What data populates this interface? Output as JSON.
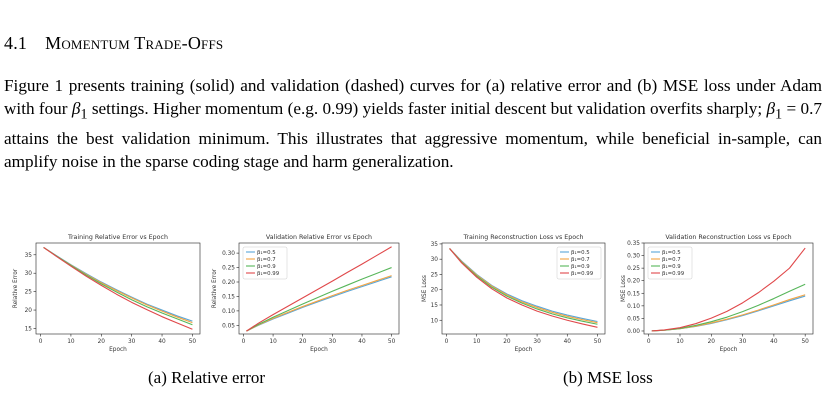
{
  "section": {
    "number": "4.1",
    "title": "Momentum Trade-Offs"
  },
  "paragraph": {
    "p1": "Figure 1 presents training (solid) and validation (dashed) curves for (a) relative error and (b) MSE loss under Adam with four ",
    "beta_sym": "β",
    "beta_sub": "1",
    "p2": " settings. Higher momentum (e.g. 0.99) yields faster initial descent but validation overfits sharply; ",
    "p3_eq": " = 0.7 attains the best validation minimum. This illustrates that aggressive momentum, while beneficial in-sample, can amplify noise in the sparse coding stage and harm generalization."
  },
  "captions": {
    "a": "(a) Relative error",
    "b": "(b) MSE loss"
  },
  "colors": {
    "b05": "#5aa6d8",
    "b07": "#f4a442",
    "b09": "#57b65a",
    "b099": "#e0484a"
  },
  "chart_data": [
    {
      "type": "line",
      "title": "Training Relative Error vs Epoch",
      "xlabel": "Epoch",
      "ylabel": "Relative Error",
      "xlim": [
        -1.5,
        52.5
      ],
      "ylim": [
        13.5,
        38.2
      ],
      "xticks": [
        0,
        10,
        20,
        30,
        40,
        50
      ],
      "yticks": [
        15,
        20,
        25,
        30,
        35
      ],
      "ytick_labels": [
        "15",
        "20",
        "25",
        "30",
        "35"
      ],
      "legend": "top-right",
      "show_legend": false,
      "x": [
        1,
        5,
        10,
        15,
        20,
        25,
        30,
        35,
        40,
        45,
        50
      ],
      "series": [
        {
          "name": "β₁=0.5",
          "color": "b05",
          "values": [
            37.0,
            34.9,
            32.3,
            29.9,
            27.6,
            25.5,
            23.5,
            21.6,
            20.0,
            18.4,
            17.0
          ]
        },
        {
          "name": "β₁=0.7",
          "color": "b07",
          "values": [
            37.0,
            34.8,
            32.2,
            29.7,
            27.4,
            25.3,
            23.3,
            21.4,
            19.7,
            18.1,
            16.6
          ]
        },
        {
          "name": "β₁=0.9",
          "color": "b09",
          "values": [
            37.0,
            34.8,
            32.1,
            29.5,
            27.1,
            24.9,
            22.8,
            20.9,
            19.2,
            17.6,
            16.0
          ]
        },
        {
          "name": "β₁=0.99",
          "color": "b099",
          "values": [
            37.0,
            34.7,
            31.9,
            29.2,
            26.7,
            24.3,
            22.1,
            20.1,
            18.2,
            16.5,
            14.8
          ]
        }
      ]
    },
    {
      "type": "line",
      "title": "Validation Relative Error vs Epoch",
      "xlabel": "Epoch",
      "ylabel": "Relative Error",
      "xlim": [
        -1.5,
        52.5
      ],
      "ylim": [
        0.02,
        0.335
      ],
      "xticks": [
        0,
        10,
        20,
        30,
        40,
        50
      ],
      "yticks": [
        0.05,
        0.1,
        0.15,
        0.2,
        0.25,
        0.3
      ],
      "ytick_labels": [
        "0.05",
        "0.10",
        "0.15",
        "0.20",
        "0.25",
        "0.30"
      ],
      "legend": "top-left",
      "show_legend": true,
      "x": [
        1,
        5,
        10,
        15,
        20,
        25,
        30,
        35,
        40,
        45,
        50
      ],
      "series": [
        {
          "name": "β₁=0.5",
          "color": "b05",
          "values": [
            0.03,
            0.05,
            0.072,
            0.092,
            0.112,
            0.131,
            0.149,
            0.167,
            0.184,
            0.201,
            0.218
          ]
        },
        {
          "name": "β₁=0.7",
          "color": "b07",
          "values": [
            0.03,
            0.051,
            0.074,
            0.095,
            0.115,
            0.134,
            0.153,
            0.171,
            0.188,
            0.205,
            0.222
          ]
        },
        {
          "name": "β₁=0.9",
          "color": "b09",
          "values": [
            0.03,
            0.053,
            0.078,
            0.101,
            0.124,
            0.146,
            0.168,
            0.189,
            0.21,
            0.23,
            0.25
          ]
        },
        {
          "name": "β₁=0.99",
          "color": "b099",
          "values": [
            0.03,
            0.057,
            0.087,
            0.116,
            0.145,
            0.174,
            0.203,
            0.233,
            0.262,
            0.292,
            0.322
          ]
        }
      ]
    },
    {
      "type": "line",
      "title": "Training Reconstruction Loss vs Epoch",
      "xlabel": "Epoch",
      "ylabel": "MSE Loss",
      "xlim": [
        -1.5,
        52.5
      ],
      "ylim": [
        5.5,
        35.3
      ],
      "xticks": [
        0,
        10,
        20,
        30,
        40,
        50
      ],
      "yticks": [
        10,
        15,
        20,
        25,
        30,
        35
      ],
      "ytick_labels": [
        "10",
        "15",
        "20",
        "25",
        "30",
        "35"
      ],
      "legend": "top-right",
      "show_legend": true,
      "x": [
        1,
        5,
        10,
        15,
        20,
        25,
        30,
        35,
        40,
        45,
        50
      ],
      "series": [
        {
          "name": "β₁=0.5",
          "color": "b05",
          "values": [
            33.5,
            29.4,
            25.0,
            21.4,
            18.6,
            16.4,
            14.6,
            13.0,
            11.7,
            10.6,
            9.6
          ]
        },
        {
          "name": "β₁=0.7",
          "color": "b07",
          "values": [
            33.5,
            29.2,
            24.8,
            21.2,
            18.3,
            16.0,
            14.2,
            12.6,
            11.3,
            10.2,
            9.2
          ]
        },
        {
          "name": "β₁=0.9",
          "color": "b09",
          "values": [
            33.5,
            29.0,
            24.5,
            20.8,
            17.9,
            15.6,
            13.7,
            12.1,
            10.8,
            9.7,
            8.7
          ]
        },
        {
          "name": "β₁=0.99",
          "color": "b099",
          "values": [
            33.5,
            28.8,
            24.1,
            20.3,
            17.3,
            15.0,
            13.0,
            11.4,
            10.0,
            8.8,
            7.7
          ]
        }
      ]
    },
    {
      "type": "line",
      "title": "Validation Reconstruction Loss vs Epoch",
      "xlabel": "Epoch",
      "ylabel": "MSE Loss",
      "xlim": [
        -1.5,
        52.5
      ],
      "ylim": [
        -0.012,
        0.35
      ],
      "xticks": [
        0,
        10,
        20,
        30,
        40,
        50
      ],
      "yticks": [
        0.0,
        0.05,
        0.1,
        0.15,
        0.2,
        0.25,
        0.3,
        0.35
      ],
      "ytick_labels": [
        "0.00",
        "0.05",
        "0.10",
        "0.15",
        "0.20",
        "0.25",
        "0.30",
        "0.35"
      ],
      "legend": "top-left",
      "show_legend": true,
      "x": [
        1,
        5,
        10,
        15,
        20,
        25,
        30,
        35,
        40,
        45,
        50
      ],
      "series": [
        {
          "name": "β₁=0.5",
          "color": "b05",
          "values": [
            0.0,
            0.003,
            0.009,
            0.018,
            0.03,
            0.045,
            0.061,
            0.08,
            0.1,
            0.12,
            0.139
          ]
        },
        {
          "name": "β₁=0.7",
          "color": "b07",
          "values": [
            0.0,
            0.003,
            0.009,
            0.019,
            0.032,
            0.047,
            0.064,
            0.083,
            0.104,
            0.125,
            0.144
          ]
        },
        {
          "name": "β₁=0.9",
          "color": "b09",
          "values": [
            0.0,
            0.003,
            0.01,
            0.022,
            0.037,
            0.055,
            0.077,
            0.102,
            0.129,
            0.158,
            0.186
          ]
        },
        {
          "name": "β₁=0.99",
          "color": "b099",
          "values": [
            0.0,
            0.004,
            0.013,
            0.029,
            0.051,
            0.078,
            0.112,
            0.152,
            0.198,
            0.25,
            0.33
          ]
        }
      ]
    }
  ]
}
